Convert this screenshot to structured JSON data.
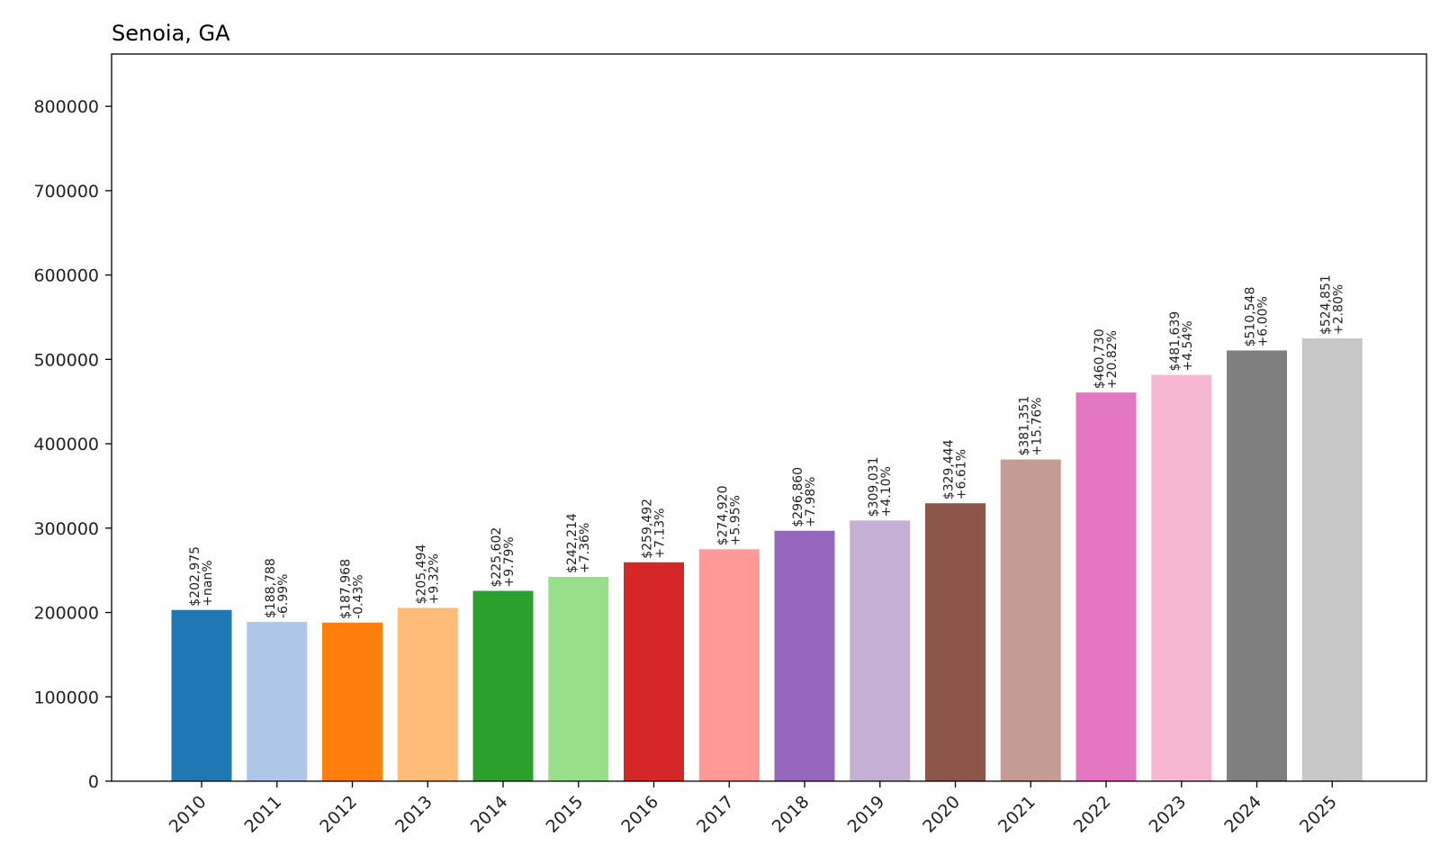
{
  "chart_data": {
    "type": "bar",
    "title": "Senoia, GA",
    "xlabel": "",
    "ylabel": "",
    "ylim": [
      0,
      862000
    ],
    "yticks": [
      0,
      100000,
      200000,
      300000,
      400000,
      500000,
      600000,
      700000,
      800000
    ],
    "ytick_labels": [
      "0",
      "100000",
      "200000",
      "300000",
      "400000",
      "500000",
      "600000",
      "700000",
      "800000"
    ],
    "grid": false,
    "categories": [
      "2010",
      "2011",
      "2012",
      "2013",
      "2014",
      "2015",
      "2016",
      "2017",
      "2018",
      "2019",
      "2020",
      "2021",
      "2022",
      "2023",
      "2024",
      "2025"
    ],
    "values": [
      202975,
      188788,
      187968,
      205494,
      225602,
      242214,
      259492,
      274920,
      296860,
      309031,
      329444,
      381351,
      460730,
      481639,
      510548,
      524851
    ],
    "value_labels": [
      "$202,975",
      "$188,788",
      "$187,968",
      "$205,494",
      "$225,602",
      "$242,214",
      "$259,492",
      "$274,920",
      "$296,860",
      "$309,031",
      "$329,444",
      "$381,351",
      "$460,730",
      "$481,639",
      "$510,548",
      "$524,851"
    ],
    "change_labels": [
      "+nan%",
      "-6.99%",
      "-0.43%",
      "+9.32%",
      "+9.79%",
      "+7.36%",
      "+7.13%",
      "+5.95%",
      "+7.98%",
      "+4.10%",
      "+6.61%",
      "+15.76%",
      "+20.82%",
      "+4.54%",
      "+6.00%",
      "+2.80%"
    ],
    "colors": [
      "#1f77b4",
      "#aec7e8",
      "#ff7f0e",
      "#ffbb78",
      "#2ca02c",
      "#98df8a",
      "#d62728",
      "#ff9896",
      "#9467bd",
      "#c5b0d5",
      "#8c564b",
      "#c49c94",
      "#e377c2",
      "#f7b6d2",
      "#7f7f7f",
      "#c7c7c7"
    ]
  }
}
